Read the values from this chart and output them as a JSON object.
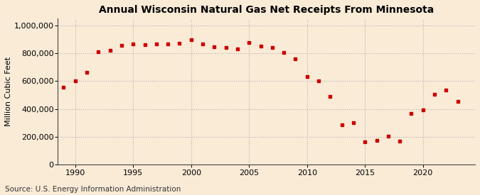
{
  "title": "Annual Wisconsin Natural Gas Net Receipts From Minnesota",
  "ylabel": "Million Cubic Feet",
  "source": "Source: U.S. Energy Information Administration",
  "background_color": "#faebd7",
  "marker_color": "#cc0000",
  "years": [
    1989,
    1990,
    1991,
    1992,
    1993,
    1994,
    1995,
    1996,
    1997,
    1998,
    1999,
    2000,
    2001,
    2002,
    2003,
    2004,
    2005,
    2006,
    2007,
    2008,
    2009,
    2010,
    2011,
    2012,
    2013,
    2014,
    2015,
    2016,
    2017,
    2018,
    2019,
    2020,
    2021,
    2022,
    2023
  ],
  "values": [
    555000,
    600000,
    665000,
    810000,
    820000,
    855000,
    865000,
    860000,
    865000,
    870000,
    875000,
    900000,
    865000,
    845000,
    840000,
    830000,
    880000,
    850000,
    840000,
    805000,
    760000,
    635000,
    600000,
    490000,
    285000,
    300000,
    165000,
    175000,
    205000,
    170000,
    365000,
    395000,
    505000,
    535000,
    455000
  ],
  "xlim": [
    1988.5,
    2024.5
  ],
  "ylim": [
    0,
    1050000
  ],
  "yticks": [
    0,
    200000,
    400000,
    600000,
    800000,
    1000000
  ],
  "xticks": [
    1990,
    1995,
    2000,
    2005,
    2010,
    2015,
    2020
  ],
  "grid_color": "#b0b0b0",
  "title_fontsize": 10,
  "label_fontsize": 8,
  "tick_fontsize": 8,
  "source_fontsize": 7.5
}
